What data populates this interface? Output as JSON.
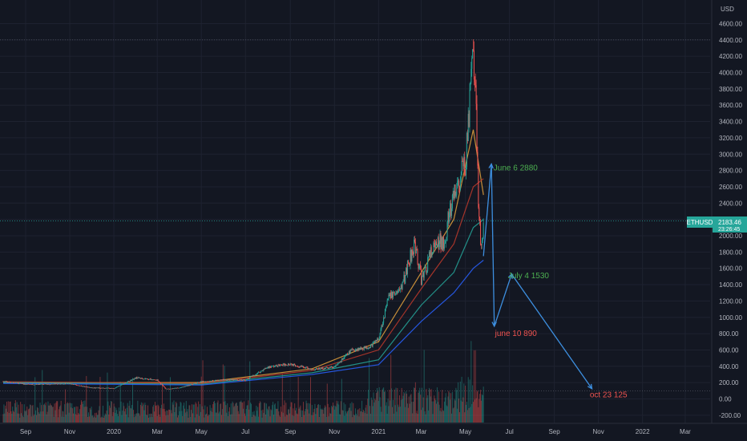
{
  "chart_data": {
    "type": "candlestick",
    "symbol": "ETHUSD",
    "currency_label": "USD",
    "price_label": "2183.46",
    "countdown_label": "23:26:45",
    "price_axis": {
      "min": -300,
      "max": 4800,
      "ticks": [
        "-200.00",
        "0.00",
        "200.00",
        "400.00",
        "600.00",
        "800.00",
        "1000.00",
        "1200.00",
        "1400.00",
        "1600.00",
        "1800.00",
        "2000.00",
        "2200.00",
        "2400.00",
        "2600.00",
        "2800.00",
        "3000.00",
        "3200.00",
        "3400.00",
        "3600.00",
        "3800.00",
        "4000.00",
        "4200.00",
        "4400.00",
        "4600.00"
      ]
    },
    "time_axis": {
      "start": "2019-08-01",
      "end": "2022-03-31",
      "labels": [
        {
          "text": "Sep",
          "date": "2019-09-01"
        },
        {
          "text": "Nov",
          "date": "2019-11-01"
        },
        {
          "text": "2020",
          "date": "2020-01-01"
        },
        {
          "text": "Mar",
          "date": "2020-03-01"
        },
        {
          "text": "May",
          "date": "2020-05-01"
        },
        {
          "text": "Jul",
          "date": "2020-07-01"
        },
        {
          "text": "Sep",
          "date": "2020-09-01"
        },
        {
          "text": "Nov",
          "date": "2020-11-01"
        },
        {
          "text": "2021",
          "date": "2021-01-01"
        },
        {
          "text": "Mar",
          "date": "2021-03-01"
        },
        {
          "text": "May",
          "date": "2021-05-01"
        },
        {
          "text": "Jul",
          "date": "2021-07-01"
        },
        {
          "text": "Sep",
          "date": "2021-09-01"
        },
        {
          "text": "Nov",
          "date": "2021-11-01"
        },
        {
          "text": "2022",
          "date": "2022-01-01"
        },
        {
          "text": "Mar",
          "date": "2022-03-01"
        }
      ]
    },
    "price_series": [
      {
        "date": "2019-08-01",
        "close": 215
      },
      {
        "date": "2019-09-01",
        "close": 180
      },
      {
        "date": "2019-10-01",
        "close": 180
      },
      {
        "date": "2019-11-01",
        "close": 185
      },
      {
        "date": "2019-12-01",
        "close": 135
      },
      {
        "date": "2020-01-01",
        "close": 130
      },
      {
        "date": "2020-02-01",
        "close": 260
      },
      {
        "date": "2020-03-01",
        "close": 230
      },
      {
        "date": "2020-03-13",
        "close": 120
      },
      {
        "date": "2020-04-01",
        "close": 135
      },
      {
        "date": "2020-05-01",
        "close": 210
      },
      {
        "date": "2020-06-01",
        "close": 235
      },
      {
        "date": "2020-07-01",
        "close": 230
      },
      {
        "date": "2020-08-01",
        "close": 390
      },
      {
        "date": "2020-09-01",
        "close": 430
      },
      {
        "date": "2020-10-01",
        "close": 360
      },
      {
        "date": "2020-11-01",
        "close": 390
      },
      {
        "date": "2020-11-25",
        "close": 600
      },
      {
        "date": "2020-12-20",
        "close": 640
      },
      {
        "date": "2021-01-01",
        "close": 740
      },
      {
        "date": "2021-01-15",
        "close": 1250
      },
      {
        "date": "2021-02-01",
        "close": 1350
      },
      {
        "date": "2021-02-20",
        "close": 1950
      },
      {
        "date": "2021-03-01",
        "close": 1450
      },
      {
        "date": "2021-03-15",
        "close": 1800
      },
      {
        "date": "2021-04-01",
        "close": 1950
      },
      {
        "date": "2021-04-15",
        "close": 2450
      },
      {
        "date": "2021-05-01",
        "close": 2900
      },
      {
        "date": "2021-05-12",
        "close": 4200
      },
      {
        "date": "2021-05-15",
        "close": 3700
      },
      {
        "date": "2021-05-19",
        "close": 2500
      },
      {
        "date": "2021-05-23",
        "close": 1800
      },
      {
        "date": "2021-05-26",
        "close": 2183
      }
    ],
    "moving_averages": [
      {
        "color": "#e8a33d",
        "points": [
          {
            "date": "2019-08-01",
            "value": 200
          },
          {
            "date": "2020-05-01",
            "value": 200
          },
          {
            "date": "2020-10-01",
            "value": 370
          },
          {
            "date": "2021-01-01",
            "value": 700
          },
          {
            "date": "2021-03-01",
            "value": 1550
          },
          {
            "date": "2021-04-15",
            "value": 2200
          },
          {
            "date": "2021-05-12",
            "value": 3300
          },
          {
            "date": "2021-05-26",
            "value": 2500
          }
        ]
      },
      {
        "color": "#c0392b",
        "points": [
          {
            "date": "2019-08-01",
            "value": 210
          },
          {
            "date": "2020-05-01",
            "value": 190
          },
          {
            "date": "2020-10-01",
            "value": 350
          },
          {
            "date": "2021-01-01",
            "value": 600
          },
          {
            "date": "2021-03-01",
            "value": 1350
          },
          {
            "date": "2021-04-15",
            "value": 1900
          },
          {
            "date": "2021-05-12",
            "value": 2600
          },
          {
            "date": "2021-05-26",
            "value": 2700
          }
        ]
      },
      {
        "color": "#26a69a",
        "points": [
          {
            "date": "2019-08-01",
            "value": 200
          },
          {
            "date": "2020-05-01",
            "value": 180
          },
          {
            "date": "2020-10-01",
            "value": 320
          },
          {
            "date": "2021-01-01",
            "value": 480
          },
          {
            "date": "2021-03-01",
            "value": 1150
          },
          {
            "date": "2021-04-15",
            "value": 1550
          },
          {
            "date": "2021-05-12",
            "value": 2100
          },
          {
            "date": "2021-05-26",
            "value": 2200
          }
        ]
      },
      {
        "color": "#2962ff",
        "points": [
          {
            "date": "2019-08-01",
            "value": 190
          },
          {
            "date": "2020-05-01",
            "value": 170
          },
          {
            "date": "2020-10-01",
            "value": 300
          },
          {
            "date": "2021-01-01",
            "value": 420
          },
          {
            "date": "2021-03-01",
            "value": 950
          },
          {
            "date": "2021-04-15",
            "value": 1300
          },
          {
            "date": "2021-05-12",
            "value": 1600
          },
          {
            "date": "2021-05-26",
            "value": 1700
          }
        ]
      }
    ],
    "projection": {
      "color": "#3d8fe0",
      "points": [
        {
          "date": "2021-05-26",
          "value": 1750
        },
        {
          "date": "2021-06-06",
          "value": 2880
        },
        {
          "date": "2021-06-10",
          "value": 890
        },
        {
          "date": "2021-07-04",
          "value": 1530
        },
        {
          "date": "2021-10-23",
          "value": 125
        }
      ]
    },
    "annotations": [
      {
        "text": "June 6 2880",
        "date": "2021-06-09",
        "value": 2800,
        "color": "#4caf50"
      },
      {
        "text": "July 4  1530",
        "date": "2021-06-29",
        "value": 1480,
        "color": "#4caf50"
      },
      {
        "text": "june 10 890",
        "date": "2021-06-11",
        "value": 770,
        "color": "#ef5350"
      },
      {
        "text": "oct 23 125",
        "date": "2021-10-20",
        "value": 20,
        "color": "#ef5350"
      }
    ],
    "volume_max": 1.0
  }
}
